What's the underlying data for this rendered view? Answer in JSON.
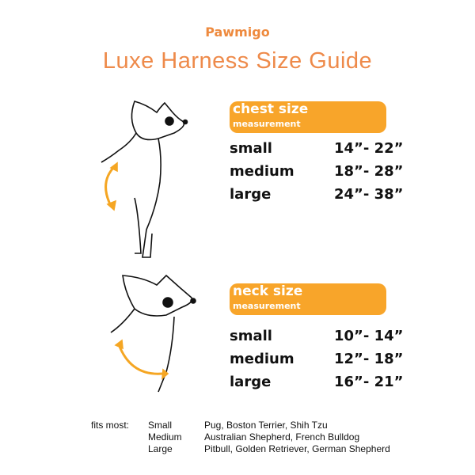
{
  "brand": "Pawmigo",
  "title": "Luxe Harness Size Guide",
  "colors": {
    "title": "#ee8a4a",
    "pill": "#f8a52a",
    "arrow": "#f5a623"
  },
  "chest": {
    "title": "chest size",
    "subtitle": "measurement",
    "rows": [
      {
        "size": "small",
        "range": "14”- 22”"
      },
      {
        "size": "medium",
        "range": "18”- 28”"
      },
      {
        "size": "large",
        "range": "24”- 38”"
      }
    ]
  },
  "neck": {
    "title": "neck size",
    "subtitle": "measurement",
    "rows": [
      {
        "size": "small",
        "range": "10”- 14”"
      },
      {
        "size": "medium",
        "range": "12”- 18”"
      },
      {
        "size": "large",
        "range": "16”- 21”"
      }
    ]
  },
  "fits": {
    "label": "fits most:",
    "rows": [
      {
        "size": "Small",
        "breeds": "Pug, Boston Terrier, Shih Tzu"
      },
      {
        "size": "Medium",
        "breeds": "Australian Shepherd, French Bulldog"
      },
      {
        "size": "Large",
        "breeds": "Pitbull, Golden Retriever, German Shepherd"
      }
    ]
  }
}
